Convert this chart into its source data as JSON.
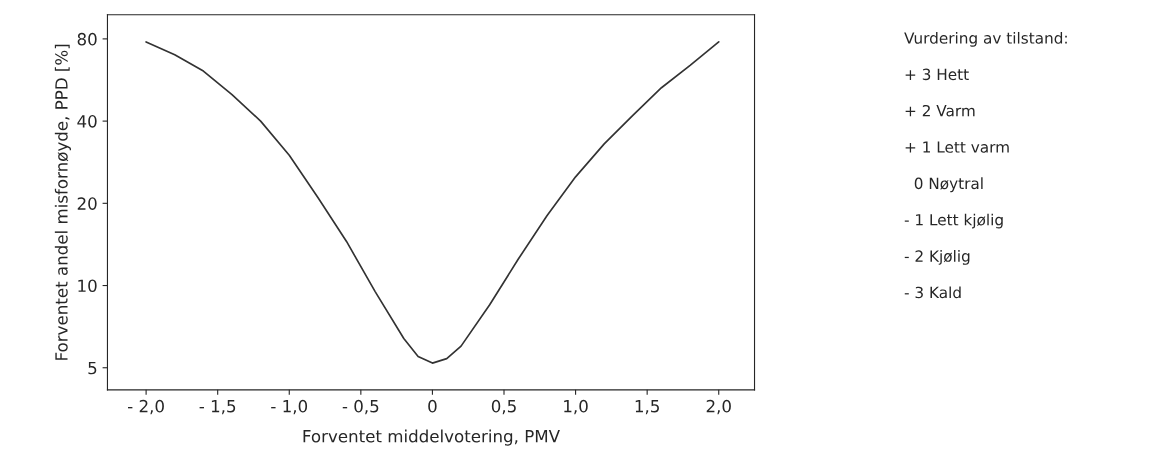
{
  "chart_data": {
    "type": "line",
    "xlabel": "Forventet middelvotering, PMV",
    "ylabel": "Forventet andel misfornøyde, PPD [%]",
    "x": [
      -2.0,
      -1.8,
      -1.6,
      -1.4,
      -1.2,
      -1.0,
      -0.8,
      -0.6,
      -0.4,
      -0.2,
      -0.1,
      0,
      0.1,
      0.2,
      0.4,
      0.6,
      0.8,
      1.0,
      1.2,
      1.4,
      1.6,
      1.8,
      2.0
    ],
    "series": [
      {
        "color": "#333333",
        "values": [
          78,
          70,
          61,
          50,
          40,
          30,
          21,
          14.5,
          9.5,
          6.4,
          5.5,
          5.2,
          5.4,
          6.0,
          8.5,
          12.5,
          18,
          25,
          33,
          42,
          53,
          64,
          78
        ]
      }
    ],
    "log": "y",
    "xlim": [
      -2.27,
      2.25
    ],
    "ylim": [
      4.15,
      98
    ],
    "xticks": [
      {
        "value": -2.0,
        "label": "- 2,0"
      },
      {
        "value": -1.5,
        "label": "- 1,5"
      },
      {
        "value": -1.0,
        "label": "- 1,0"
      },
      {
        "value": -0.5,
        "label": "- 0,5"
      },
      0,
      {
        "value": 0.5,
        "label": "0,5"
      },
      {
        "value": 1.0,
        "label": "1,0"
      },
      {
        "value": 1.5,
        "label": "1,5"
      },
      {
        "value": 2.0,
        "label": "2,0"
      }
    ],
    "yticks": [
      5,
      10,
      20,
      40,
      80
    ],
    "grid": false,
    "annotations": [
      "Vurdering av tilstand:",
      "+ 3 Hett",
      "+ 2 Varm",
      "+ 1 Lett varm",
      "  0 Nøytral",
      "- 1 Lett kjølig",
      "- 2 Kjølig",
      "- 3 Kald"
    ]
  }
}
